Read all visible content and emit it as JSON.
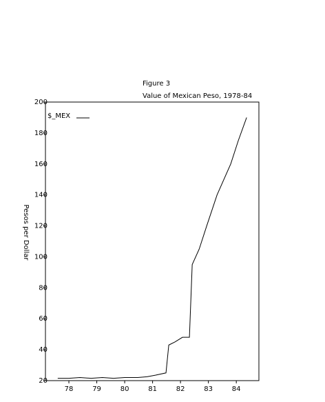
{
  "chart_data": {
    "type": "line",
    "title": "Figure 3",
    "subtitle": "Value of Mexican Peso, 1978-84",
    "y_label": "Pesos per Dollar",
    "xlim": [
      77.16,
      84.81
    ],
    "xticks": [
      78,
      79,
      80,
      81,
      82,
      83,
      84
    ],
    "ylim": [
      20,
      200
    ],
    "yticks": [
      20,
      40,
      60,
      80,
      100,
      120,
      140,
      160,
      180,
      200
    ],
    "grid": false,
    "legend": "top-left",
    "x": [
      77.6,
      78.0,
      78.4,
      78.8,
      79.2,
      79.6,
      80.0,
      80.47,
      80.8,
      81.1,
      81.48,
      81.58,
      81.8,
      82.07,
      82.32,
      82.42,
      82.67,
      82.94,
      83.31,
      83.8,
      84.07,
      84.37
    ],
    "series": [
      {
        "name": "$_MEX",
        "color": "#000000",
        "values": [
          21.5,
          21.5,
          22,
          21.5,
          22,
          21.5,
          22,
          22,
          22.5,
          23.5,
          25,
          43,
          45,
          48,
          48,
          95,
          105,
          120,
          140,
          160,
          175,
          190
        ]
      }
    ]
  }
}
